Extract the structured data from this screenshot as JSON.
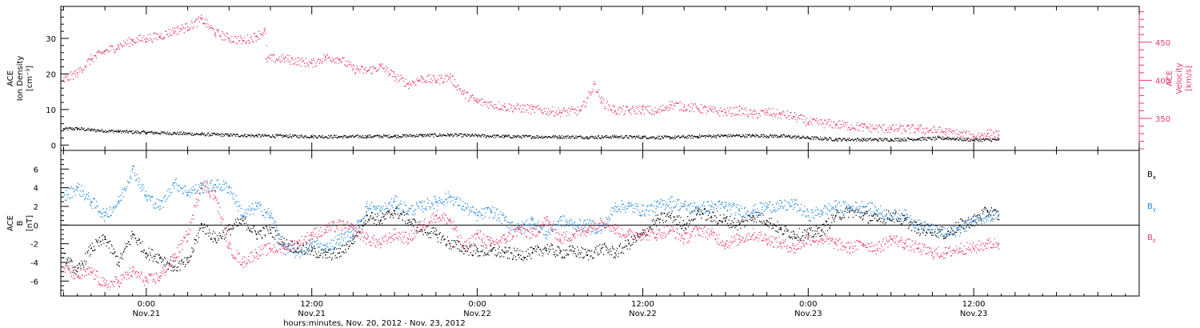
{
  "colors": {
    "black": "#000000",
    "pink": "#e8386a",
    "blue": "#1f86e0",
    "axis": "#000000"
  },
  "xaxis": {
    "title": "hours:minutes, Nov. 20, 2012 - Nov. 23, 2012",
    "hours_range": [
      -6.2,
      72
    ],
    "ticks": [
      {
        "hours": 0,
        "time": "0:00",
        "date": "Nov.21"
      },
      {
        "hours": 12,
        "time": "12:00",
        "date": "Nov.21"
      },
      {
        "hours": 24,
        "time": "0:00",
        "date": "Nov.22"
      },
      {
        "hours": 36,
        "time": "12:00",
        "date": "Nov.22"
      },
      {
        "hours": 48,
        "time": "0:00",
        "date": "Nov.23"
      },
      {
        "hours": 60,
        "time": "12:00",
        "date": "Nov.23"
      }
    ]
  },
  "chart_data": [
    {
      "type": "scatter",
      "panel": "top",
      "ylabel_left": [
        "ACE",
        "Ion Density",
        "[cm⁻³]"
      ],
      "ylabel_right": [
        "ACE",
        "Velocity",
        "[km/s]"
      ],
      "ylim_left": [
        -1.5,
        39
      ],
      "ylim_right": [
        308,
        497
      ],
      "yticks_left": [
        0,
        10,
        20,
        30
      ],
      "yticks_right": [
        350,
        400,
        450
      ],
      "series": [
        {
          "axis": "left",
          "color": "#000000",
          "x": [
            -6,
            -5,
            -4,
            -2,
            0,
            2,
            4,
            6,
            8,
            10,
            12,
            14,
            16,
            18,
            20,
            22,
            24,
            26,
            28,
            30,
            32,
            34,
            36,
            38,
            40,
            42,
            44,
            46,
            48,
            50,
            52,
            54,
            56,
            58,
            60,
            61.8
          ],
          "y": [
            4.5,
            4.6,
            4.2,
            3.8,
            3.5,
            3.3,
            3.0,
            2.8,
            2.6,
            2.5,
            2.4,
            2.3,
            2.4,
            2.5,
            2.7,
            2.8,
            2.6,
            2.4,
            2.3,
            2.3,
            2.2,
            2.3,
            2.2,
            2.1,
            2.4,
            2.6,
            2.6,
            2.5,
            2.0,
            1.6,
            1.5,
            1.5,
            1.7,
            1.9,
            1.4,
            1.5
          ]
        },
        {
          "axis": "right",
          "color": "#e8386a",
          "x": [
            -6,
            -5,
            -4,
            -3,
            -2,
            -1,
            0,
            1,
            2,
            3,
            4,
            5,
            6,
            7,
            8,
            8.6,
            8.7,
            10,
            12,
            13,
            14,
            15,
            16,
            17,
            18,
            19,
            20,
            21,
            22,
            23,
            24,
            26,
            28,
            30,
            31.5,
            32.5,
            33,
            34,
            35,
            36,
            37,
            38,
            39,
            40,
            41,
            42,
            43,
            44,
            45,
            46,
            47,
            48,
            50,
            52,
            54,
            56,
            58,
            60,
            61,
            61.8
          ],
          "y": [
            400,
            410,
            428,
            438,
            445,
            452,
            455,
            458,
            465,
            470,
            480,
            462,
            455,
            452,
            458,
            465,
            428,
            428,
            422,
            430,
            428,
            415,
            412,
            418,
            405,
            395,
            402,
            400,
            404,
            382,
            372,
            365,
            362,
            358,
            360,
            395,
            372,
            360,
            360,
            362,
            358,
            368,
            365,
            363,
            360,
            358,
            360,
            355,
            358,
            355,
            352,
            345,
            342,
            338,
            336,
            336,
            332,
            326,
            330,
            328
          ]
        }
      ]
    },
    {
      "type": "scatter",
      "panel": "bottom",
      "ylabel_left": [
        "ACE",
        "B",
        "[nT]"
      ],
      "ylim": [
        -7.6,
        8.0
      ],
      "yticks": [
        -6,
        -4,
        -2,
        0,
        2,
        4,
        6
      ],
      "zero_line": true,
      "legend_position": "right",
      "series": [
        {
          "name": "Bx",
          "color": "#000000",
          "x": [
            -6,
            -5,
            -4,
            -3,
            -2,
            -1,
            0,
            1,
            2,
            3,
            4,
            5,
            6,
            7,
            8,
            9,
            10,
            11,
            12,
            13,
            14,
            15,
            16,
            17,
            18,
            19,
            20,
            21,
            22,
            23,
            24,
            25,
            26,
            27,
            28,
            29,
            30,
            31,
            32,
            33,
            34,
            35,
            36,
            37,
            38,
            39,
            40,
            41,
            42,
            43,
            44,
            45,
            46,
            47,
            48,
            49,
            50,
            51,
            52,
            53,
            54,
            55,
            56,
            57,
            58,
            59,
            60,
            61,
            61.8
          ],
          "y": [
            -3.5,
            -5.0,
            -2.5,
            -1.5,
            -4.0,
            -1.0,
            -3.0,
            -3.5,
            -4.5,
            -4.0,
            0.0,
            -1.5,
            -0.5,
            0.5,
            -1.0,
            -0.5,
            -2.0,
            -2.5,
            -2.8,
            -3.2,
            -3.0,
            -1.5,
            1.0,
            0.5,
            1.5,
            0.5,
            -0.5,
            -1.0,
            -2.0,
            -2.5,
            -2.8,
            -2.8,
            -3.0,
            -3.2,
            -3.0,
            -2.5,
            -3.0,
            -2.8,
            -3.2,
            -2.5,
            -3.0,
            -2.0,
            -1.0,
            0.5,
            1.0,
            0.0,
            1.5,
            0.8,
            0.5,
            0.0,
            1.0,
            0.5,
            -0.5,
            -1.0,
            -1.0,
            -0.5,
            1.0,
            1.5,
            1.0,
            0.5,
            1.0,
            0.5,
            -0.5,
            -0.5,
            -1.0,
            0.0,
            0.5,
            1.5,
            1.0
          ]
        },
        {
          "name": "By",
          "color": "#1f86e0",
          "x": [
            -6,
            -5,
            -4,
            -3,
            -2,
            -1,
            0,
            1,
            2,
            3,
            4,
            5,
            6,
            7,
            8,
            9,
            10,
            11,
            12,
            13,
            14,
            15,
            16,
            17,
            18,
            19,
            20,
            21,
            22,
            23,
            24,
            25,
            26,
            27,
            28,
            29,
            30,
            31,
            32,
            33,
            34,
            35,
            36,
            37,
            38,
            39,
            40,
            41,
            42,
            43,
            44,
            45,
            46,
            47,
            48,
            49,
            50,
            51,
            52,
            53,
            54,
            55,
            56,
            57,
            58,
            59,
            60,
            61,
            61.8
          ],
          "y": [
            3.0,
            4.0,
            2.5,
            1.0,
            2.5,
            6.0,
            3.0,
            2.0,
            4.5,
            3.5,
            4.0,
            4.3,
            4.0,
            1.0,
            2.0,
            1.0,
            -2.5,
            -3.0,
            -2.0,
            -2.5,
            -1.5,
            -1.0,
            2.0,
            1.5,
            2.5,
            1.5,
            2.0,
            2.5,
            3.0,
            2.0,
            1.0,
            1.5,
            0.5,
            -0.5,
            0.5,
            -1.0,
            0.5,
            0.0,
            0.0,
            -0.5,
            2.0,
            2.0,
            1.5,
            2.0,
            2.5,
            2.0,
            1.8,
            2.0,
            2.0,
            1.5,
            1.5,
            2.0,
            2.0,
            2.2,
            1.0,
            1.5,
            2.0,
            1.8,
            2.0,
            1.5,
            1.0,
            1.0,
            0.0,
            -0.5,
            -1.0,
            -0.5,
            0.5,
            1.0,
            1.0
          ]
        },
        {
          "name": "Bz",
          "color": "#e8386a",
          "x": [
            -6,
            -5,
            -4,
            -3,
            -2,
            -1,
            0,
            1,
            2,
            3,
            4,
            5,
            6,
            7,
            8,
            9,
            10,
            11,
            12,
            13,
            14,
            15,
            16,
            17,
            18,
            19,
            20,
            21,
            22,
            23,
            24,
            25,
            26,
            27,
            28,
            29,
            30,
            31,
            32,
            33,
            34,
            35,
            36,
            37,
            38,
            39,
            40,
            41,
            42,
            43,
            44,
            45,
            46,
            47,
            48,
            49,
            50,
            51,
            52,
            53,
            54,
            55,
            56,
            57,
            58,
            59,
            60,
            61,
            61.8
          ],
          "y": [
            -4.5,
            -5.5,
            -5.0,
            -6.5,
            -6.0,
            -5.0,
            -6.0,
            -5.5,
            -3.5,
            -1.0,
            4.5,
            3.0,
            -2.5,
            -4.0,
            -3.0,
            -2.5,
            -2.5,
            -2.0,
            -1.0,
            -0.5,
            0.0,
            -0.5,
            -1.5,
            -2.0,
            -1.0,
            -1.5,
            0.0,
            1.0,
            0.5,
            -2.5,
            -1.0,
            -2.0,
            -1.5,
            -0.5,
            -1.0,
            0.5,
            -1.5,
            -1.0,
            -0.5,
            0.5,
            -0.5,
            -1.0,
            -1.0,
            -1.0,
            -0.5,
            -1.5,
            -0.5,
            -1.0,
            -2.0,
            -1.5,
            -1.0,
            -1.5,
            -2.0,
            -2.5,
            -1.5,
            -1.5,
            -2.0,
            -2.5,
            -2.0,
            -2.5,
            -1.5,
            -2.0,
            -2.5,
            -3.0,
            -3.0,
            -2.5,
            -2.5,
            -2.0,
            -2.0
          ]
        }
      ]
    }
  ]
}
